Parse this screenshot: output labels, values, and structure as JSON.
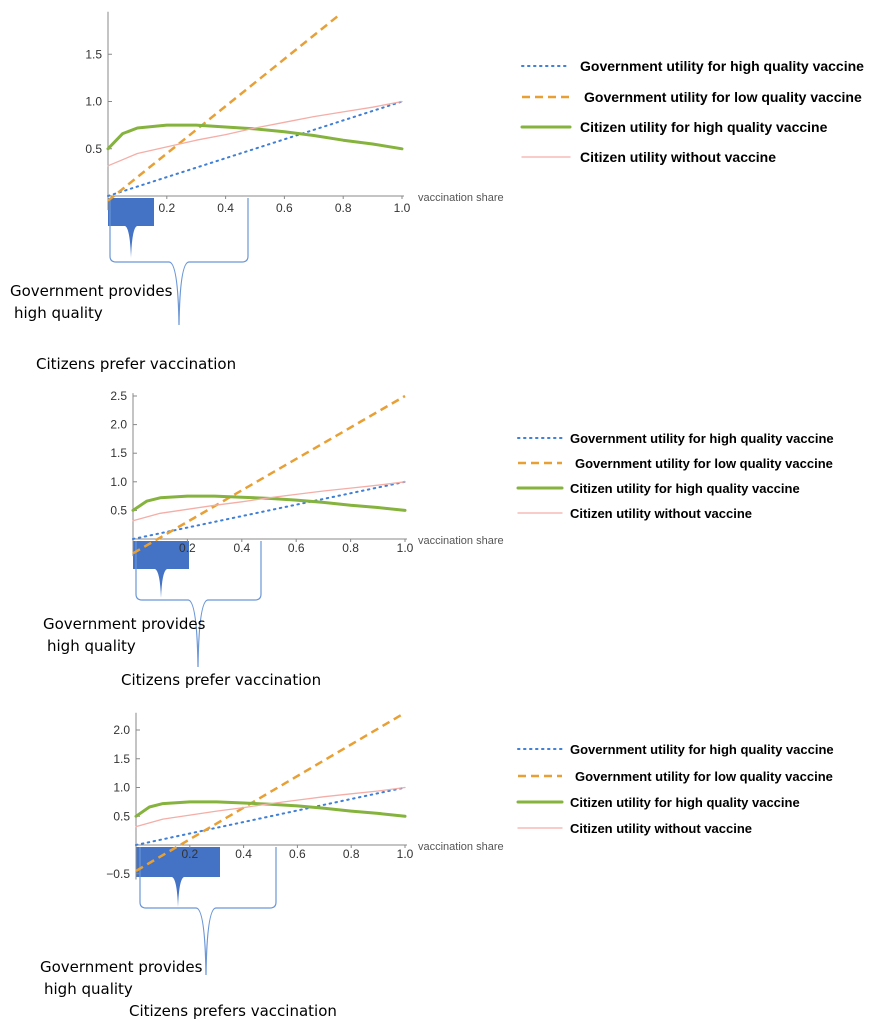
{
  "colors": {
    "gov_high": "#3f7fd6",
    "gov_low": "#e8a035",
    "cit_high": "#85b33d",
    "cit_none": "#f4aea7",
    "bracket": "#6a96d6",
    "fill": "#4472c4",
    "axis": "#888888"
  },
  "chart_data": [
    {
      "type": "line",
      "xlabel": "vaccination share",
      "xlim": [
        0,
        1
      ],
      "ylim": [
        -0.15,
        1.95
      ],
      "xticks": [
        "0.2",
        "0.4",
        "0.6",
        "0.8",
        "1.0"
      ],
      "yticks": [
        "0.5",
        "1.0",
        "1.5"
      ],
      "series": [
        {
          "name": "Government utility for high quality vaccine",
          "style": "dotted",
          "x": [
            0,
            1
          ],
          "y": [
            0,
            1
          ]
        },
        {
          "name": "Government utility for low quality vaccine",
          "style": "dashed",
          "x": [
            0,
            0.78
          ],
          "y": [
            -0.05,
            1.9
          ]
        },
        {
          "name": "Citizen utility for high quality vaccine",
          "style": "thick",
          "x": [
            0,
            0.05,
            0.1,
            0.2,
            0.3,
            0.4,
            0.5,
            0.6,
            0.7,
            0.8,
            0.9,
            1.0
          ],
          "y": [
            0.5,
            0.66,
            0.72,
            0.75,
            0.75,
            0.73,
            0.71,
            0.68,
            0.64,
            0.59,
            0.55,
            0.5
          ]
        },
        {
          "name": "Citizen utility without vaccine",
          "style": "thin",
          "x": [
            0,
            0.1,
            0.2,
            0.3,
            0.4,
            0.5,
            0.6,
            0.7,
            0.8,
            0.9,
            1.0
          ],
          "y": [
            0.32,
            0.45,
            0.52,
            0.59,
            0.65,
            0.72,
            0.78,
            0.84,
            0.89,
            0.94,
            1.0
          ]
        }
      ],
      "annotations": {
        "lower": [
          "Government provides",
          "high quality"
        ],
        "upper": "Citizens prefer vaccination"
      }
    },
    {
      "type": "line",
      "xlabel": "vaccination share",
      "xlim": [
        0,
        1
      ],
      "ylim": [
        -0.3,
        2.55
      ],
      "xticks": [
        "0.2",
        "0.4",
        "0.6",
        "0.8",
        "1.0"
      ],
      "yticks": [
        "0.5",
        "1.0",
        "1.5",
        "2.0",
        "2.5"
      ],
      "series": [
        {
          "name": "Government utility for high quality vaccine",
          "style": "dotted",
          "x": [
            0,
            1
          ],
          "y": [
            0,
            1
          ]
        },
        {
          "name": "Government utility for low quality vaccine",
          "style": "dashed",
          "x": [
            0,
            1
          ],
          "y": [
            -0.25,
            2.5
          ]
        },
        {
          "name": "Citizen utility for high quality vaccine",
          "style": "thick",
          "x": [
            0,
            0.05,
            0.1,
            0.2,
            0.3,
            0.4,
            0.5,
            0.6,
            0.7,
            0.8,
            0.9,
            1.0
          ],
          "y": [
            0.5,
            0.66,
            0.72,
            0.75,
            0.75,
            0.73,
            0.71,
            0.68,
            0.64,
            0.59,
            0.55,
            0.5
          ]
        },
        {
          "name": "Citizen utility without vaccine",
          "style": "thin",
          "x": [
            0,
            0.1,
            0.2,
            0.3,
            0.4,
            0.5,
            0.6,
            0.7,
            0.8,
            0.9,
            1.0
          ],
          "y": [
            0.32,
            0.45,
            0.52,
            0.59,
            0.65,
            0.72,
            0.78,
            0.84,
            0.89,
            0.94,
            1.0
          ]
        }
      ],
      "annotations": {
        "lower": [
          "Government provides",
          "high quality"
        ],
        "upper": "Citizens prefer vaccination"
      }
    },
    {
      "type": "line",
      "xlabel": "vaccination share",
      "xlim": [
        0,
        1
      ],
      "ylim": [
        -0.6,
        2.3
      ],
      "xticks": [
        "0.2",
        "0.4",
        "0.6",
        "0.8",
        "1.0"
      ],
      "yticks": [
        "−0.5",
        "0.5",
        "1.0",
        "1.5",
        "2.0"
      ],
      "series": [
        {
          "name": "Government utility for high quality vaccine",
          "style": "dotted",
          "x": [
            0,
            1
          ],
          "y": [
            0,
            1
          ]
        },
        {
          "name": "Government utility for low quality vaccine",
          "style": "dashed",
          "x": [
            0,
            1
          ],
          "y": [
            -0.45,
            2.3
          ]
        },
        {
          "name": "Citizen utility for high quality vaccine",
          "style": "thick",
          "x": [
            0,
            0.05,
            0.1,
            0.2,
            0.3,
            0.4,
            0.5,
            0.6,
            0.7,
            0.8,
            0.9,
            1.0
          ],
          "y": [
            0.5,
            0.66,
            0.72,
            0.75,
            0.75,
            0.73,
            0.71,
            0.68,
            0.64,
            0.59,
            0.55,
            0.5
          ]
        },
        {
          "name": "Citizen utility without vaccine",
          "style": "thin",
          "x": [
            0,
            0.1,
            0.2,
            0.3,
            0.4,
            0.5,
            0.6,
            0.7,
            0.8,
            0.9,
            1.0
          ],
          "y": [
            0.32,
            0.45,
            0.52,
            0.59,
            0.65,
            0.72,
            0.78,
            0.84,
            0.89,
            0.94,
            1.0
          ]
        }
      ],
      "annotations": {
        "lower": [
          "Government provides",
          "high quality"
        ],
        "upper": "Citizens prefers vaccination"
      }
    }
  ]
}
